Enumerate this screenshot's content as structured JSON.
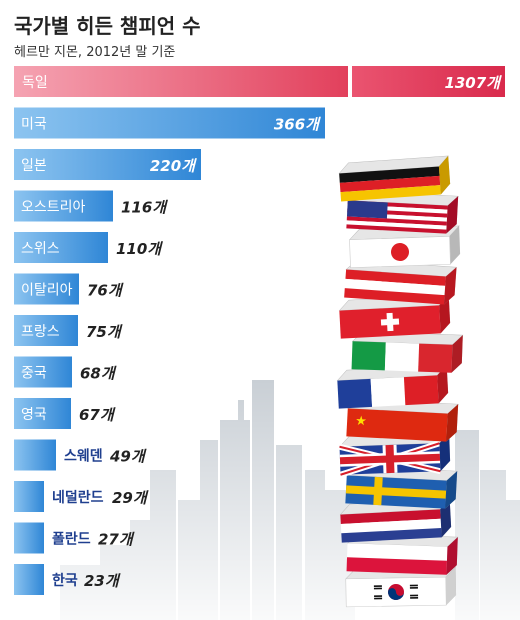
{
  "title": "국가별 히든 챔피언 수",
  "subtitle": "헤르만 지몬, 2012년 말 기준",
  "colors": {
    "top_bar": "#e8405e",
    "top_bar_light": "#f29aaa",
    "bar": "#2f8ad8",
    "bar_light": "#8cc4f0",
    "label_dark": "#1f3f8f",
    "city": "#c5cbd1"
  },
  "chart_data": {
    "type": "bar",
    "orientation": "horizontal",
    "title": "국가별 히든 챔피언 수",
    "subtitle": "헤르만 지몬, 2012년 말 기준",
    "unit": "개",
    "categories": [
      "독일",
      "미국",
      "일본",
      "오스트리아",
      "스위스",
      "이탈리아",
      "프랑스",
      "중국",
      "영국",
      "스웨덴",
      "네덜란드",
      "폴란드",
      "한국"
    ],
    "values": [
      1307,
      366,
      220,
      116,
      110,
      76,
      75,
      68,
      67,
      49,
      29,
      27,
      23
    ],
    "value_labels": [
      "1307개",
      "366개",
      "220개",
      "116개",
      "110개",
      "76개",
      "75개",
      "68개",
      "67개",
      "49개",
      "29개",
      "27개",
      "23개"
    ],
    "axis_break": true,
    "grid": false,
    "legend": "none"
  },
  "illustration": {
    "description_icon": "flag-stack-icon",
    "flags": [
      "germany-flag-icon",
      "usa-flag-icon",
      "japan-flag-icon",
      "austria-flag-icon",
      "switzerland-flag-icon",
      "italy-flag-icon",
      "france-flag-icon",
      "china-flag-icon",
      "uk-flag-icon",
      "sweden-flag-icon",
      "netherlands-flag-icon",
      "poland-flag-icon",
      "korea-flag-icon"
    ]
  }
}
